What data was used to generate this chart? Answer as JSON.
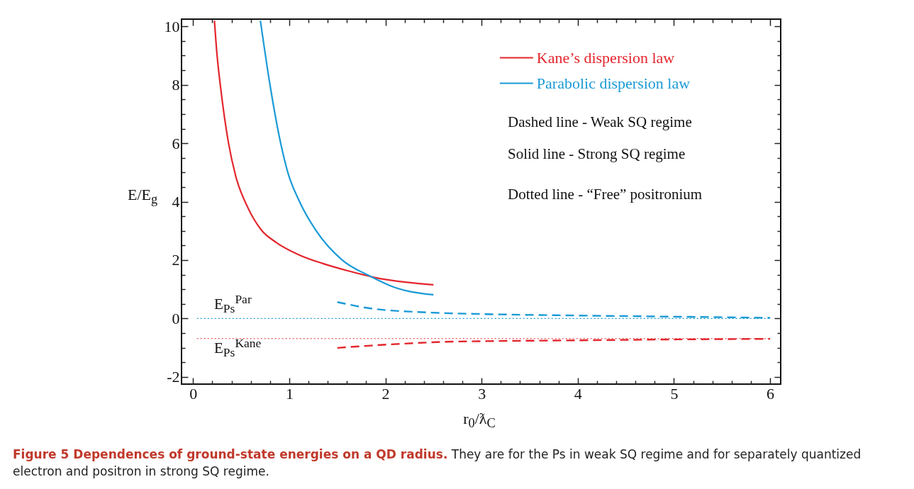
{
  "chart_data": {
    "type": "line",
    "title": "Figure 5 Dependences of ground-state energies on a QD radius.",
    "subtitle": "They are for the Ps in weak SQ regime and for separately quantized electron and positron in strong SQ regime.",
    "xlabel": "r$_{0}$/ƛ$_{C}$",
    "ylabel": "E/E$_{g}$",
    "xlim": [
      -0.12,
      6.11
    ],
    "ylim": [
      -2.25,
      10.25
    ],
    "xticks": [
      0,
      {
        "value": 0.2,
        "label": null
      },
      {
        "value": 0.4,
        "label": null
      },
      {
        "value": 0.6,
        "label": null
      },
      {
        "value": 0.8,
        "label": null
      },
      1,
      {
        "value": 1.2,
        "label": null
      },
      {
        "value": 1.4,
        "label": null
      },
      {
        "value": 1.6,
        "label": null
      },
      {
        "value": 1.8,
        "label": null
      },
      2,
      {
        "value": 2.2,
        "label": null
      },
      {
        "value": 2.4,
        "label": null
      },
      {
        "value": 2.6,
        "label": null
      },
      {
        "value": 2.8,
        "label": null
      },
      3,
      {
        "value": 3.2,
        "label": null
      },
      {
        "value": 3.4,
        "label": null
      },
      {
        "value": 3.6,
        "label": null
      },
      {
        "value": 3.8,
        "label": null
      },
      4,
      {
        "value": 4.2,
        "label": null
      },
      {
        "value": 4.4,
        "label": null
      },
      {
        "value": 4.6,
        "label": null
      },
      {
        "value": 4.8,
        "label": null
      },
      5,
      {
        "value": 5.2,
        "label": null
      },
      {
        "value": 5.4,
        "label": null
      },
      {
        "value": 5.6,
        "label": null
      },
      {
        "value": 5.8,
        "label": null
      },
      6
    ],
    "yticks": [
      -2,
      {
        "value": -1.5,
        "label": null
      },
      {
        "value": -1,
        "label": null
      },
      {
        "value": -0.5,
        "label": null
      },
      0,
      {
        "value": 0.5,
        "label": null
      },
      {
        "value": 1,
        "label": null
      },
      {
        "value": 1.5,
        "label": null
      },
      2,
      {
        "value": 2.5,
        "label": null
      },
      {
        "value": 3,
        "label": null
      },
      {
        "value": 3.5,
        "label": null
      },
      4,
      {
        "value": 4.5,
        "label": null
      },
      {
        "value": 5,
        "label": null
      },
      {
        "value": 5.5,
        "label": null
      },
      6,
      {
        "value": 6.5,
        "label": null
      },
      {
        "value": 7,
        "label": null
      },
      {
        "value": 7.5,
        "label": null
      },
      8,
      {
        "value": 8.5,
        "label": null
      },
      {
        "value": 9,
        "label": null
      },
      {
        "value": 9.5,
        "label": null
      },
      10
    ],
    "grid": false,
    "legend": "top right",
    "series": [
      {
        "name": "Kane’s dispersion law",
        "color": "#e3262d",
        "line_style": "solid",
        "x": [
          0.222,
          0.25,
          0.283,
          0.369,
          0.443,
          0.566,
          0.714,
          0.861,
          1.107,
          1.35,
          1.6,
          1.89,
          2.21,
          2.5
        ],
        "values": [
          10.2,
          9,
          8,
          6,
          4.88,
          3.82,
          3.01,
          2.61,
          2.17,
          1.88,
          1.64,
          1.4,
          1.24,
          1.15
        ]
      },
      {
        "name": "Parabolic dispersion law",
        "color": "#1a9ad6",
        "line_style": "solid",
        "x": [
          0.7,
          0.8,
          0.911,
          0.985,
          1.107,
          1.28,
          1.55,
          1.845,
          2.09,
          2.5
        ],
        "values": [
          10.2,
          8,
          6,
          5,
          4,
          3,
          2,
          1.44,
          1.07,
          0.81
        ]
      },
      {
        "color": "#1a9ad6",
        "line_style": "dashed",
        "x": [
          1.5,
          1.85,
          2.34,
          2.63,
          3,
          4,
          5,
          6
        ],
        "values": [
          0.56,
          0.34,
          0.22,
          0.18,
          0.15,
          0.1,
          0.06,
          0.02
        ]
      },
      {
        "color": "#e3262d",
        "line_style": "dashed",
        "x": [
          1.5,
          1.85,
          2.34,
          2.63,
          3,
          4,
          5,
          6
        ],
        "values": [
          -1.01,
          -0.93,
          -0.84,
          -0.8,
          -0.78,
          -0.75,
          -0.72,
          -0.7
        ]
      },
      {
        "color": "#1a9ad6",
        "line_style": "dotted",
        "x": [
          0.04,
          6
        ],
        "values": [
          0,
          0
        ]
      },
      {
        "color": "#e3262d",
        "line_style": "dotted",
        "x": [
          0.04,
          6
        ],
        "values": [
          -0.69,
          -0.69
        ]
      }
    ],
    "annotations": [
      "Dashed line  -  Weak SQ regime",
      "Solid line  -  Strong SQ regime",
      "Dotted line  -  “Free” positronium",
      "E$_{Ps}$$^{Par}$",
      "E$_{Ps}$$^{Kane}$"
    ]
  }
}
